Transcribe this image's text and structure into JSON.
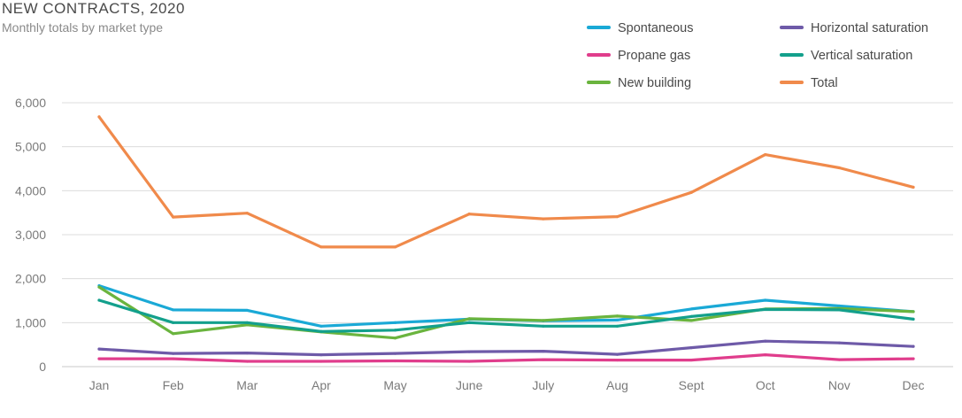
{
  "chart_data": {
    "type": "line",
    "title": "NEW CONTRACTS, 2020",
    "subtitle": "Monthly totals by market type",
    "xlabel": "",
    "ylabel": "",
    "ylim": [
      0,
      6000
    ],
    "yticks": [
      0,
      1000,
      2000,
      3000,
      4000,
      5000,
      6000
    ],
    "ytick_labels": [
      "0",
      "1,000",
      "2,000",
      "3,000",
      "4,000",
      "5,000",
      "6,000"
    ],
    "grid": true,
    "legend_position": "top-right",
    "categories": [
      "Jan",
      "Feb",
      "Mar",
      "Apr",
      "May",
      "June",
      "July",
      "Aug",
      "Sept",
      "Oct",
      "Nov",
      "Dec"
    ],
    "series": [
      {
        "name": "Spontaneous",
        "color": "#1aa9d6",
        "values": [
          1840,
          1290,
          1280,
          920,
          1000,
          1080,
          1040,
          1060,
          1310,
          1510,
          1380,
          1250
        ]
      },
      {
        "name": "Propane gas",
        "color": "#e03d8c",
        "values": [
          180,
          180,
          120,
          120,
          130,
          120,
          160,
          150,
          150,
          270,
          160,
          180
        ]
      },
      {
        "name": "New building",
        "color": "#6ab43e",
        "values": [
          1810,
          750,
          950,
          790,
          650,
          1090,
          1050,
          1150,
          1050,
          1310,
          1320,
          1250
        ]
      },
      {
        "name": "Horizontal saturation",
        "color": "#6e5aa8",
        "values": [
          400,
          300,
          310,
          270,
          300,
          340,
          350,
          280,
          430,
          580,
          540,
          460
        ]
      },
      {
        "name": "Vertical saturation",
        "color": "#13a08c",
        "values": [
          1510,
          1000,
          1000,
          800,
          830,
          1000,
          920,
          920,
          1140,
          1300,
          1290,
          1080
        ]
      },
      {
        "name": "Total",
        "color": "#f08a4b",
        "values": [
          5680,
          3400,
          3490,
          2720,
          2720,
          3470,
          3360,
          3410,
          3960,
          4820,
          4520,
          4080
        ]
      }
    ]
  }
}
